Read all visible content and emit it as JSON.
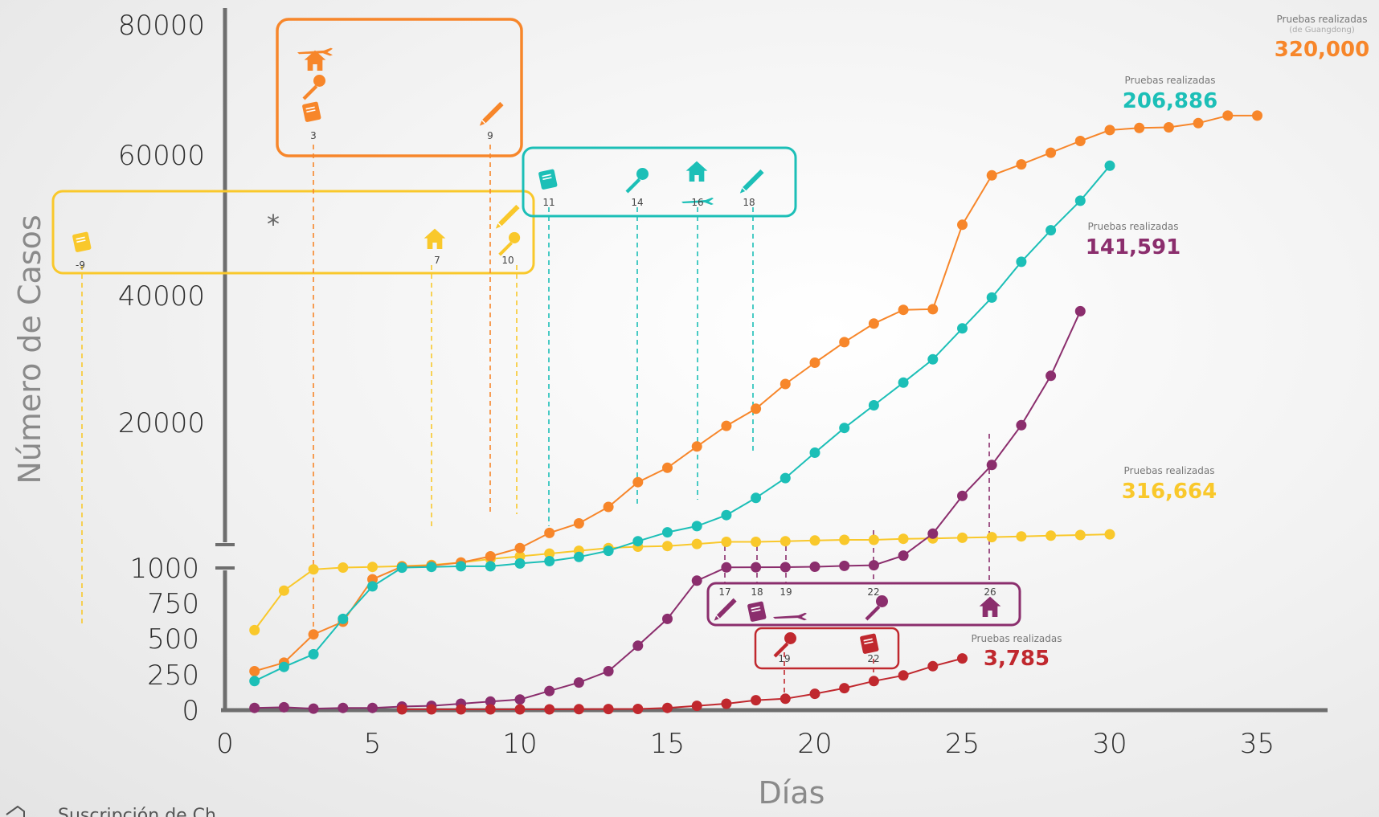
{
  "chart_data": {
    "type": "line",
    "xlabel": "Días",
    "ylabel": "Número de Casos",
    "xlim": [
      0,
      37
    ],
    "x_ticks": [
      "0",
      "5",
      "10",
      "15",
      "20",
      "25",
      "30",
      "35"
    ],
    "y_ticks_upper": [
      "80000",
      "60000",
      "40000",
      "20000"
    ],
    "y_ticks_lower": [
      "1000",
      "750",
      "500",
      "250",
      "0"
    ],
    "y_scale": "broken axis: 0–1000 lower segment, 1000–80000 upper segment",
    "annotation_star": "*",
    "footer_text": "Suscripción de Ch...",
    "series": [
      {
        "key": "orange",
        "color": "#F7862A",
        "label_top": "Pruebas realizadas",
        "label_sub": "(de Guangdong)",
        "total": "320,000",
        "points": [
          [
            1,
            270
          ],
          [
            2,
            330
          ],
          [
            3,
            530
          ],
          [
            4,
            620
          ],
          [
            5,
            920
          ],
          [
            6,
            1200
          ],
          [
            7,
            1340
          ],
          [
            8,
            1800
          ],
          [
            9,
            2700
          ],
          [
            10,
            3900
          ],
          [
            11,
            6100
          ],
          [
            12,
            7500
          ],
          [
            13,
            9900
          ],
          [
            14,
            13500
          ],
          [
            15,
            15600
          ],
          [
            16,
            18700
          ],
          [
            17,
            21700
          ],
          [
            18,
            24200
          ],
          [
            19,
            27800
          ],
          [
            20,
            30900
          ],
          [
            21,
            33900
          ],
          [
            22,
            36600
          ],
          [
            23,
            38600
          ],
          [
            24,
            38700
          ],
          [
            25,
            51000
          ],
          [
            26,
            58200
          ],
          [
            27,
            59800
          ],
          [
            28,
            61500
          ],
          [
            29,
            63200
          ],
          [
            30,
            64800
          ],
          [
            31,
            65100
          ],
          [
            32,
            65200
          ],
          [
            33,
            65800
          ],
          [
            34,
            66900
          ],
          [
            35,
            66900
          ]
        ]
      },
      {
        "key": "teal",
        "color": "#1CBFB7",
        "label_top": "Pruebas realizadas",
        "label_sub": "",
        "total": "206,886",
        "points": [
          [
            1,
            200
          ],
          [
            2,
            300
          ],
          [
            3,
            390
          ],
          [
            4,
            640
          ],
          [
            5,
            870
          ],
          [
            6,
            1050
          ],
          [
            7,
            1150
          ],
          [
            8,
            1250
          ],
          [
            9,
            1250
          ],
          [
            10,
            1650
          ],
          [
            11,
            2000
          ],
          [
            12,
            2600
          ],
          [
            13,
            3500
          ],
          [
            14,
            4900
          ],
          [
            15,
            6200
          ],
          [
            16,
            7100
          ],
          [
            17,
            8700
          ],
          [
            18,
            11200
          ],
          [
            19,
            14100
          ],
          [
            20,
            17800
          ],
          [
            21,
            21400
          ],
          [
            22,
            24700
          ],
          [
            23,
            28000
          ],
          [
            24,
            31400
          ],
          [
            25,
            35900
          ],
          [
            26,
            40400
          ],
          [
            27,
            45600
          ],
          [
            28,
            50200
          ],
          [
            29,
            54500
          ],
          [
            30,
            59600
          ]
        ]
      },
      {
        "key": "yellow",
        "color": "#F9C82B",
        "label_top": "Pruebas realizadas",
        "label_sub": "",
        "total": "316,664",
        "points": [
          [
            1,
            560
          ],
          [
            2,
            840
          ],
          [
            3,
            990
          ],
          [
            4,
            1060
          ],
          [
            5,
            1150
          ],
          [
            6,
            1270
          ],
          [
            7,
            1450
          ],
          [
            8,
            1780
          ],
          [
            9,
            2300
          ],
          [
            10,
            2700
          ],
          [
            11,
            3100
          ],
          [
            12,
            3500
          ],
          [
            13,
            3900
          ],
          [
            14,
            4100
          ],
          [
            15,
            4200
          ],
          [
            16,
            4500
          ],
          [
            17,
            4800
          ],
          [
            18,
            4800
          ],
          [
            19,
            4900
          ],
          [
            20,
            5000
          ],
          [
            21,
            5100
          ],
          [
            22,
            5100
          ],
          [
            23,
            5250
          ],
          [
            24,
            5300
          ],
          [
            25,
            5400
          ],
          [
            26,
            5500
          ],
          [
            27,
            5600
          ],
          [
            28,
            5700
          ],
          [
            29,
            5800
          ],
          [
            30,
            5900
          ]
        ]
      },
      {
        "key": "purple",
        "color": "#8B2E6D",
        "label_top": "Pruebas realizadas",
        "label_sub": "",
        "total": "141,591",
        "points": [
          [
            1,
            10
          ],
          [
            2,
            15
          ],
          [
            3,
            5
          ],
          [
            4,
            10
          ],
          [
            5,
            10
          ],
          [
            6,
            20
          ],
          [
            7,
            25
          ],
          [
            8,
            40
          ],
          [
            9,
            55
          ],
          [
            10,
            70
          ],
          [
            11,
            130
          ],
          [
            12,
            190
          ],
          [
            13,
            270
          ],
          [
            14,
            450
          ],
          [
            15,
            640
          ],
          [
            16,
            910
          ],
          [
            17,
            1080
          ],
          [
            18,
            1100
          ],
          [
            19,
            1120
          ],
          [
            20,
            1180
          ],
          [
            21,
            1300
          ],
          [
            22,
            1400
          ],
          [
            23,
            2800
          ],
          [
            24,
            6000
          ],
          [
            25,
            11500
          ],
          [
            26,
            16000
          ],
          [
            27,
            21800
          ],
          [
            28,
            29000
          ],
          [
            29,
            38400
          ]
        ]
      },
      {
        "key": "red",
        "color": "#C0282E",
        "label_top": "Pruebas realizadas",
        "label_sub": "",
        "total": "3,785",
        "points": [
          [
            6,
            0
          ],
          [
            7,
            0
          ],
          [
            8,
            0
          ],
          [
            9,
            0
          ],
          [
            10,
            0
          ],
          [
            11,
            0
          ],
          [
            12,
            1
          ],
          [
            13,
            2
          ],
          [
            14,
            3
          ],
          [
            15,
            10
          ],
          [
            16,
            25
          ],
          [
            17,
            40
          ],
          [
            18,
            65
          ],
          [
            19,
            75
          ],
          [
            20,
            110
          ],
          [
            21,
            150
          ],
          [
            22,
            200
          ],
          [
            23,
            240
          ],
          [
            24,
            305
          ],
          [
            25,
            360
          ]
        ]
      }
    ]
  },
  "annotations": {
    "orange_box": {
      "labels": [
        "3",
        "9"
      ]
    },
    "teal_box": {
      "labels": [
        "11",
        "14",
        "16",
        "18"
      ]
    },
    "yellow_box": {
      "labels": [
        "-9",
        "7",
        "10"
      ]
    },
    "purple_box": {
      "labels": [
        "17",
        "18",
        "19",
        "22",
        "26"
      ]
    },
    "red_box": {
      "labels": [
        "19",
        "22"
      ]
    }
  },
  "icons": [
    "plane-icon",
    "house-icon",
    "microphone-icon",
    "book-icon",
    "pen-icon"
  ]
}
